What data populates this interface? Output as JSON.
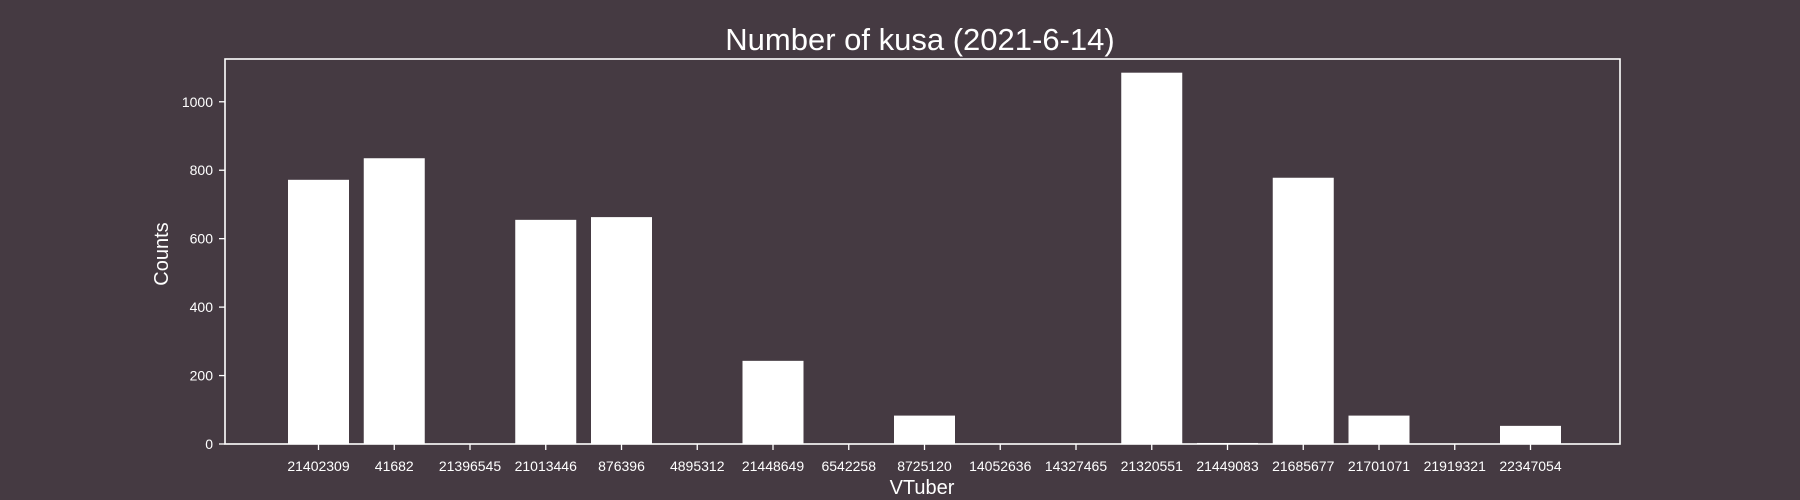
{
  "colors": {
    "background": "#453a42",
    "bar": "#ffffff",
    "axis": "#ffffff",
    "text": "#ffffff"
  },
  "chart_data": {
    "type": "bar",
    "title": "Number of kusa (2021-6-14)",
    "xlabel": "VTuber",
    "ylabel": "Counts",
    "categories": [
      "21402309",
      "41682",
      "21396545",
      "21013446",
      "876396",
      "4895312",
      "21448649",
      "6542258",
      "8725120",
      "14052636",
      "14327465",
      "21320551",
      "21449083",
      "21685677",
      "21701071",
      "21919321",
      "22347054"
    ],
    "values": [
      772,
      835,
      0,
      655,
      663,
      0,
      243,
      0,
      83,
      0,
      0,
      1085,
      3,
      778,
      83,
      0,
      53
    ],
    "ylim": [
      0,
      1125
    ],
    "yticks": [
      0,
      200,
      400,
      600,
      800,
      1000
    ],
    "grid": false,
    "legend": false
  }
}
